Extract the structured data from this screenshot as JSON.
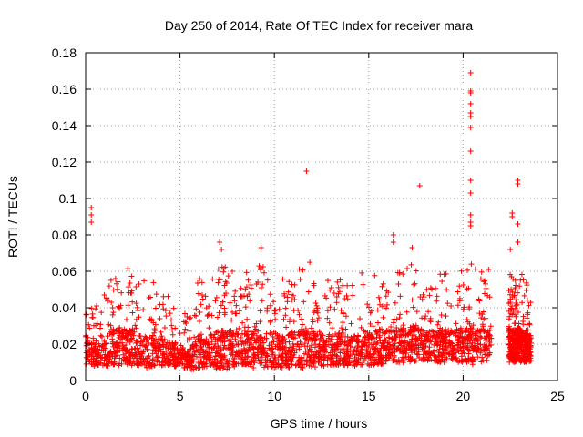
{
  "chart_data": {
    "type": "scatter",
    "title": "Day 250 of 2014, Rate Of TEC Index for receiver mara",
    "xlabel": "GPS time / hours",
    "ylabel": "ROTI / TECUs",
    "xlim": [
      0,
      25
    ],
    "ylim": [
      0,
      0.18
    ],
    "xticks": [
      0,
      5,
      10,
      15,
      20,
      25
    ],
    "xtick_labels": [
      "0",
      "5",
      "10",
      "15",
      "20",
      "25"
    ],
    "yticks": [
      0,
      0.02,
      0.04,
      0.06,
      0.08,
      0.1,
      0.12,
      0.14,
      0.16,
      0.18
    ],
    "ytick_labels": [
      "0",
      "0.02",
      "0.04",
      "0.06",
      "0.08",
      "0.1",
      "0.12",
      "0.14",
      "0.16",
      "0.18"
    ],
    "grid": true,
    "marker": "+",
    "series": [
      {
        "name": "ROTI",
        "color": "#ff0000",
        "notable_points": [
          [
            0.3,
            0.095
          ],
          [
            0.3,
            0.091
          ],
          [
            0.3,
            0.087
          ],
          [
            11.7,
            0.115
          ],
          [
            17.7,
            0.107
          ],
          [
            20.4,
            0.169
          ],
          [
            20.4,
            0.159
          ],
          [
            20.4,
            0.158
          ],
          [
            20.4,
            0.152
          ],
          [
            20.4,
            0.147
          ],
          [
            20.4,
            0.145
          ],
          [
            20.4,
            0.139
          ],
          [
            20.4,
            0.126
          ],
          [
            20.4,
            0.11
          ],
          [
            20.4,
            0.103
          ],
          [
            20.4,
            0.091
          ],
          [
            20.4,
            0.087
          ],
          [
            20.4,
            0.085
          ],
          [
            22.9,
            0.11
          ],
          [
            22.9,
            0.108
          ],
          [
            22.6,
            0.092
          ],
          [
            22.6,
            0.09
          ],
          [
            22.9,
            0.086
          ],
          [
            22.9,
            0.076
          ],
          [
            22.5,
            0.072
          ],
          [
            16.3,
            0.08
          ],
          [
            16.3,
            0.076
          ],
          [
            17.3,
            0.073
          ],
          [
            9.3,
            0.073
          ],
          [
            7.1,
            0.076
          ],
          [
            7.2,
            0.072
          ]
        ],
        "envelope": {
          "x": [
            0.0,
            0.5,
            1.0,
            1.5,
            2.0,
            2.5,
            3.0,
            3.5,
            4.0,
            4.5,
            5.0,
            5.5,
            6.0,
            6.5,
            7.0,
            7.5,
            8.0,
            8.5,
            9.0,
            9.5,
            10.0,
            10.5,
            11.0,
            11.5,
            12.0,
            12.5,
            13.0,
            13.5,
            14.0,
            14.5,
            15.0,
            15.5,
            16.0,
            16.5,
            17.0,
            17.5,
            18.0,
            18.5,
            19.0,
            19.5,
            20.0,
            20.5,
            21.0,
            21.5
          ],
          "low": [
            0.008,
            0.008,
            0.008,
            0.008,
            0.008,
            0.008,
            0.007,
            0.007,
            0.008,
            0.008,
            0.007,
            0.006,
            0.006,
            0.006,
            0.006,
            0.006,
            0.007,
            0.007,
            0.007,
            0.007,
            0.007,
            0.007,
            0.007,
            0.007,
            0.007,
            0.008,
            0.008,
            0.008,
            0.008,
            0.008,
            0.008,
            0.009,
            0.009,
            0.009,
            0.01,
            0.01,
            0.01,
            0.01,
            0.01,
            0.01,
            0.01,
            0.008,
            0.01,
            0.012
          ],
          "high": [
            0.056,
            0.04,
            0.048,
            0.066,
            0.066,
            0.06,
            0.055,
            0.058,
            0.05,
            0.046,
            0.04,
            0.036,
            0.06,
            0.058,
            0.064,
            0.068,
            0.06,
            0.062,
            0.07,
            0.062,
            0.06,
            0.058,
            0.064,
            0.066,
            0.068,
            0.058,
            0.056,
            0.058,
            0.056,
            0.058,
            0.064,
            0.058,
            0.06,
            0.066,
            0.062,
            0.068,
            0.056,
            0.058,
            0.062,
            0.058,
            0.066,
            0.066,
            0.068,
            0.064
          ]
        },
        "segment_2": {
          "x": [
            22.4,
            22.7,
            23.0,
            23.3,
            23.6
          ],
          "low": [
            0.01,
            0.01,
            0.01,
            0.01,
            0.01
          ],
          "high": [
            0.062,
            0.06,
            0.064,
            0.056,
            0.05
          ]
        }
      }
    ]
  }
}
